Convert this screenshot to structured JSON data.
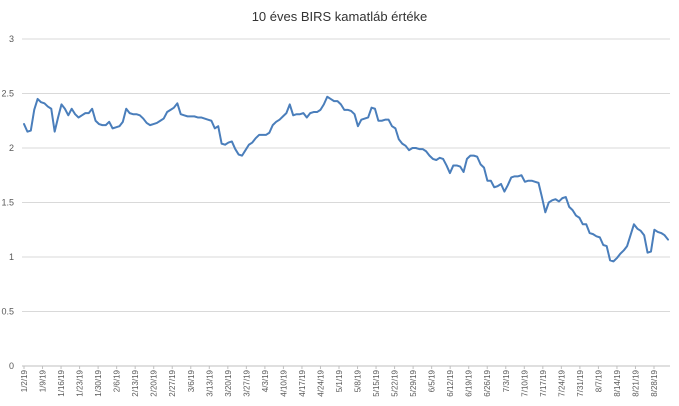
{
  "chart_data": {
    "type": "line",
    "title": "10 éves BIRS kamatláb értéke",
    "xlabel": "",
    "ylabel": "",
    "ylim": [
      0,
      3
    ],
    "yticks": [
      "0",
      "0.5",
      "1",
      "1.5",
      "2",
      "2.5",
      "3"
    ],
    "grid": "horizontal",
    "legend": "none",
    "line_color": "#4a7ebb",
    "xtick_labels": [
      "1/2/19",
      "1/9/19",
      "1/16/19",
      "1/23/19",
      "1/30/19",
      "2/6/19",
      "2/13/19",
      "2/20/19",
      "2/27/19",
      "3/6/19",
      "3/13/19",
      "3/20/19",
      "3/27/19",
      "4/3/19",
      "4/10/19",
      "4/17/19",
      "4/24/19",
      "5/1/19",
      "5/8/19",
      "5/15/19",
      "5/22/19",
      "5/29/19",
      "6/5/19",
      "6/12/19",
      "6/19/19",
      "6/26/19",
      "7/3/19",
      "7/10/19",
      "7/17/19",
      "7/24/19",
      "7/31/19",
      "8/7/19",
      "8/14/19",
      "8/21/19",
      "8/28/19"
    ],
    "series": [
      {
        "values": [
          2.22,
          2.15,
          2.16,
          2.35,
          2.45,
          2.42,
          2.41,
          2.38,
          2.36,
          2.15,
          2.28,
          2.4,
          2.36,
          2.3,
          2.36,
          2.31,
          2.28,
          2.3,
          2.32,
          2.32,
          2.36,
          2.25,
          2.22,
          2.21,
          2.21,
          2.24,
          2.18,
          2.19,
          2.2,
          2.24,
          2.36,
          2.32,
          2.31,
          2.31,
          2.3,
          2.27,
          2.23,
          2.21,
          2.22,
          2.23,
          2.25,
          2.27,
          2.33,
          2.35,
          2.37,
          2.41,
          2.31,
          2.3,
          2.29,
          2.29,
          2.29,
          2.28,
          2.28,
          2.27,
          2.26,
          2.25,
          2.18,
          2.2,
          2.04,
          2.03,
          2.05,
          2.06,
          1.99,
          1.94,
          1.93,
          1.98,
          2.03,
          2.05,
          2.09,
          2.12,
          2.12,
          2.12,
          2.14,
          2.21,
          2.24,
          2.26,
          2.29,
          2.32,
          2.4,
          2.3,
          2.31,
          2.31,
          2.32,
          2.28,
          2.32,
          2.33,
          2.33,
          2.35,
          2.4,
          2.47,
          2.45,
          2.43,
          2.43,
          2.4,
          2.35,
          2.35,
          2.34,
          2.31,
          2.2,
          2.26,
          2.27,
          2.28,
          2.37,
          2.36,
          2.25,
          2.25,
          2.26,
          2.26,
          2.2,
          2.18,
          2.08,
          2.04,
          2.02,
          1.98,
          2.0,
          2.0,
          1.99,
          1.99,
          1.97,
          1.93,
          1.9,
          1.89,
          1.91,
          1.9,
          1.84,
          1.77,
          1.84,
          1.84,
          1.83,
          1.78,
          1.9,
          1.93,
          1.93,
          1.92,
          1.85,
          1.82,
          1.7,
          1.7,
          1.64,
          1.65,
          1.67,
          1.6,
          1.66,
          1.73,
          1.74,
          1.74,
          1.75,
          1.69,
          1.7,
          1.7,
          1.69,
          1.68,
          1.55,
          1.41,
          1.5,
          1.52,
          1.53,
          1.51,
          1.54,
          1.55,
          1.46,
          1.43,
          1.38,
          1.36,
          1.3,
          1.3,
          1.22,
          1.21,
          1.19,
          1.18,
          1.11,
          1.1,
          0.97,
          0.96,
          0.99,
          1.03,
          1.06,
          1.1,
          1.2,
          1.3,
          1.26,
          1.24,
          1.2,
          1.04,
          1.05,
          1.25,
          1.23,
          1.22,
          1.2,
          1.16
        ]
      }
    ]
  }
}
